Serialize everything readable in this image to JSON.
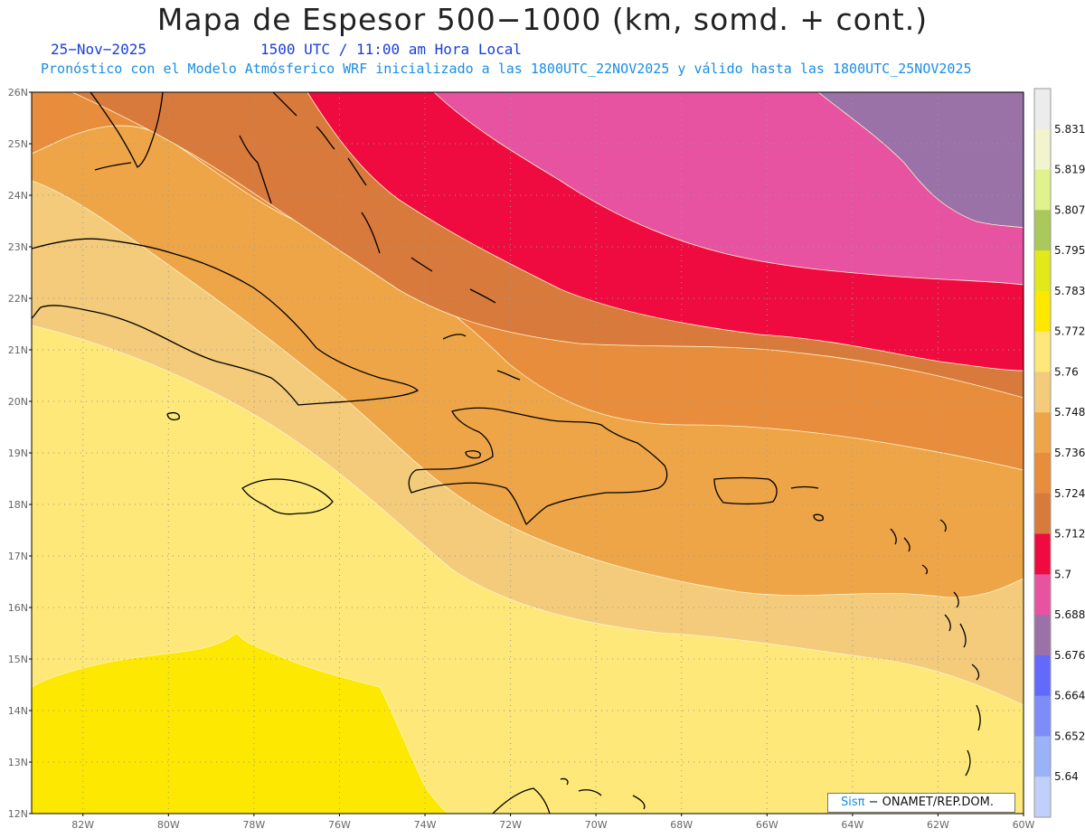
{
  "header": {
    "title": "Mapa de Espesor 500−1000 (km, somd. + cont.)",
    "date": "25−Nov−2025",
    "time": "1500 UTC / 11:00 am Hora Local",
    "subtitle": "Pronóstico con el Modelo Atmósferico WRF inicializado a las 1800UTC_22NOV2025 y válido hasta las  1800UTC_25NOV2025"
  },
  "map": {
    "lat_labels": [
      "26N",
      "25N",
      "24N",
      "23N",
      "22N",
      "21N",
      "20N",
      "19N",
      "18N",
      "17N",
      "16N",
      "15N",
      "14N",
      "13N",
      "12N"
    ],
    "lon_labels": [
      "82W",
      "80W",
      "78W",
      "76W",
      "74W",
      "72W",
      "70W",
      "68W",
      "66W",
      "64W",
      "62W",
      "60W"
    ],
    "lat_range": [
      12,
      26
    ],
    "lon_range": [
      -83.2,
      -60
    ],
    "grid": "dotted",
    "coastline_color": "#000000"
  },
  "colorbar": {
    "labels": [
      "5.831",
      "5.819",
      "5.807",
      "5.795",
      "5.783",
      "5.772",
      "5.76",
      "5.748",
      "5.736",
      "5.724",
      "5.712",
      "5.7",
      "5.688",
      "5.676",
      "5.664",
      "5.652",
      "5.64"
    ],
    "colors": [
      "#ececec",
      "#f1f4cc",
      "#e0f28e",
      "#a9c95a",
      "#e3e81a",
      "#fce800",
      "#fde879",
      "#f3cb7a",
      "#eea547",
      "#e88d3b",
      "#d87a3c",
      "#ef0a3f",
      "#e853a1",
      "#9a72a8",
      "#6269fc",
      "#7e8cf8",
      "#9ab3f8",
      "#c0d0fb"
    ]
  },
  "credit": {
    "brand": "Sisπ",
    "text": " − ONAMET/REP.DOM."
  }
}
